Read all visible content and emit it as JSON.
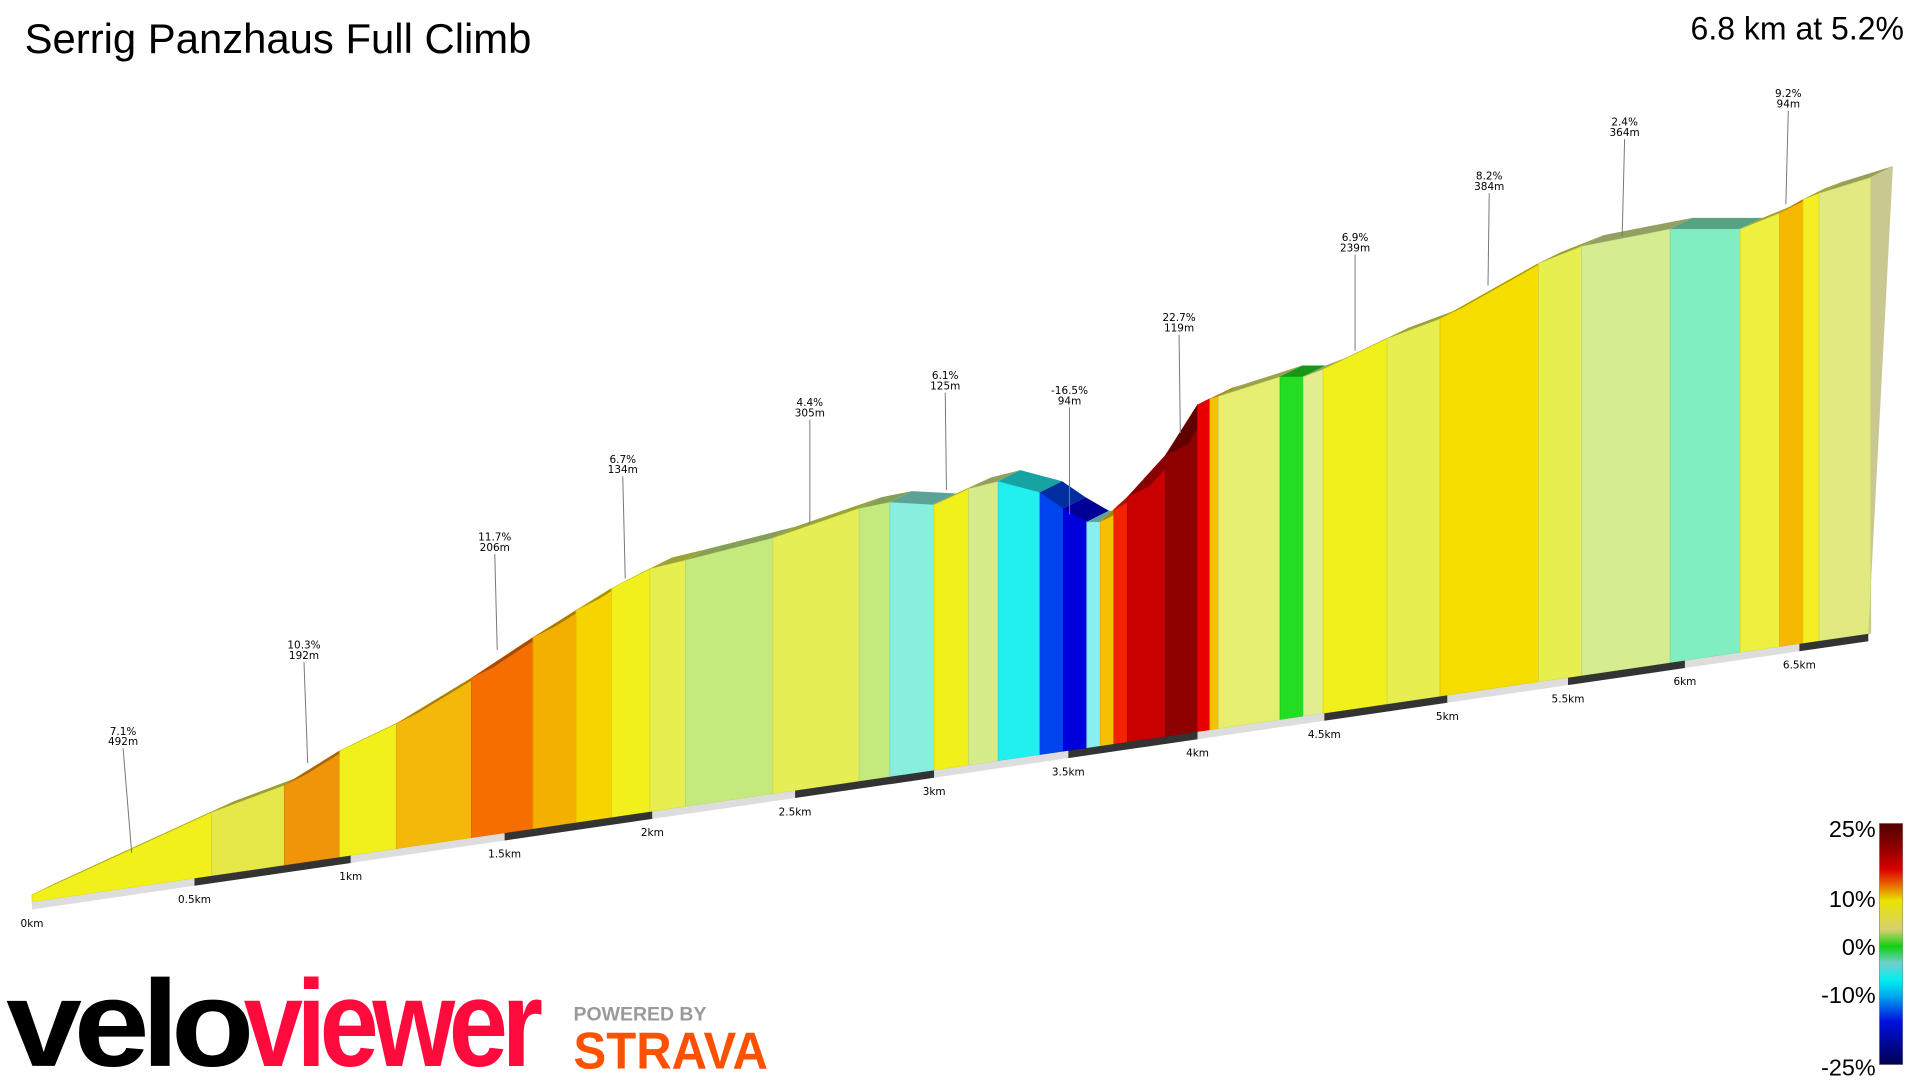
{
  "header": {
    "title": "Serrig Panzhaus Full Climb",
    "summary": "6.8 km at 5.2%"
  },
  "chart_data": {
    "type": "area",
    "title": "Serrig Panzhaus Full Climb",
    "segment_colors": [
      "#f2f01a",
      "#e6e84a",
      "#f0940a",
      "#f2f01a",
      "#f3b80a",
      "#f56e00",
      "#f3b000",
      "#f5d400",
      "#f2f01a",
      "#e6ee50",
      "#c4ea7e",
      "#e6ee55",
      "#c4ea7e",
      "#88eedd",
      "#f2f01a",
      "#d6ec8a",
      "#22f0ee",
      "#0044ee",
      "#0000dd",
      "#88eeee",
      "#f5c000",
      "#f52200",
      "#c80000",
      "#8e0000",
      "#e80000",
      "#f5c000",
      "#e6ee70",
      "#22dd22",
      "#e0ee90",
      "#f2f01a",
      "#e6ee50",
      "#f5dd00",
      "#e6ee50",
      "#d6ec90",
      "#80eec0",
      "#eef040",
      "#f5b800",
      "#f5ee20",
      "#e0ea80"
    ],
    "annotations": [
      {
        "gradient": "7.1%",
        "length": "492m"
      },
      {
        "gradient": "10.3%",
        "length": "192m"
      },
      {
        "gradient": "11.7%",
        "length": "206m"
      },
      {
        "gradient": "6.7%",
        "length": "134m"
      },
      {
        "gradient": "4.4%",
        "length": "305m"
      },
      {
        "gradient": "6.1%",
        "length": "125m"
      },
      {
        "gradient": "-16.5%",
        "length": "94m"
      },
      {
        "gradient": "22.7%",
        "length": "119m"
      },
      {
        "gradient": "6.9%",
        "length": "239m"
      },
      {
        "gradient": "8.2%",
        "length": "384m"
      },
      {
        "gradient": "2.4%",
        "length": "364m"
      },
      {
        "gradient": "9.2%",
        "length": "94m"
      }
    ],
    "x_ticks": [
      "0km",
      "0.5km",
      "1km",
      "1.5km",
      "2km",
      "2.5km",
      "3km",
      "3.5km",
      "4km",
      "4.5km",
      "5km",
      "5.5km",
      "6km",
      "6.5km"
    ],
    "xlim_km": [
      0,
      6.8
    ],
    "legend": {
      "labels": [
        "25%",
        "10%",
        "0%",
        "-10%",
        "-25%"
      ],
      "range": [
        -25,
        25
      ],
      "placement": "bottom-right"
    }
  },
  "branding": {
    "logo_part1": "velo",
    "logo_part2": "viewer",
    "powered_by": "POWERED BY",
    "strava": "STRAVA",
    "colors": {
      "velo": "#000000",
      "viewer": "#ff0a3c",
      "strava": "#fc5200",
      "powered": "#9a9a9a"
    }
  }
}
